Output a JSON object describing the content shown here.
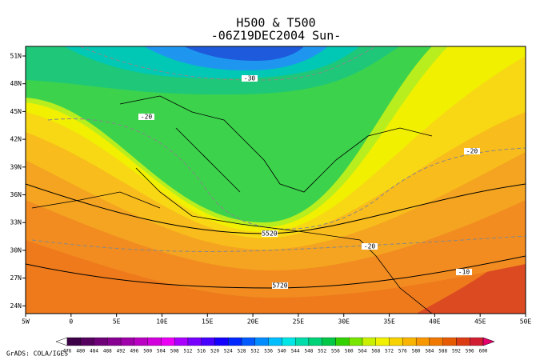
{
  "title": [
    "H500 & T500",
    "-06Z19DEC2004 Sun-"
  ],
  "lat_labels": [
    "51N",
    "48N",
    "45N",
    "42N",
    "39N",
    "36N",
    "33N",
    "30N",
    "27N",
    "24N"
  ],
  "lon_labels": [
    "5W",
    "0",
    "5E",
    "10E",
    "15E",
    "20E",
    "25E",
    "30E",
    "35E",
    "40E",
    "45E",
    "50E"
  ],
  "contour_labels": [
    {
      "text": "-30",
      "at": "top-center"
    },
    {
      "text": "-20",
      "at": "upper-left"
    },
    {
      "text": "-20",
      "at": "right"
    },
    {
      "text": "-20",
      "at": "lower-middle"
    },
    {
      "text": "-10",
      "at": "lower-right"
    },
    {
      "text": "5520",
      "at": "trough"
    },
    {
      "text": "5720",
      "at": "south"
    }
  ],
  "colorbar": {
    "labels": [
      476,
      480,
      484,
      488,
      492,
      496,
      500,
      504,
      508,
      512,
      516,
      520,
      524,
      528,
      532,
      536,
      540,
      544,
      548,
      552,
      556,
      560,
      564,
      568,
      572,
      576,
      580,
      584,
      588,
      592,
      596,
      600
    ],
    "colors": [
      "#ffffff",
      "#3c0046",
      "#55005f",
      "#6e0078",
      "#870091",
      "#a000aa",
      "#b900c3",
      "#d200dc",
      "#eb00f5",
      "#aa00ff",
      "#7800ff",
      "#4600ff",
      "#1400ff",
      "#0028ff",
      "#005aff",
      "#008cff",
      "#00beff",
      "#00e6e6",
      "#00dcaa",
      "#00d278",
      "#00c846",
      "#32d200",
      "#78e600",
      "#c8f000",
      "#f0f000",
      "#f8d200",
      "#f8b400",
      "#f89600",
      "#f07800",
      "#e65a00",
      "#dc3c14",
      "#d21e32",
      "#e6006e"
    ]
  },
  "credit": "GrADS: COLA/IGES"
}
